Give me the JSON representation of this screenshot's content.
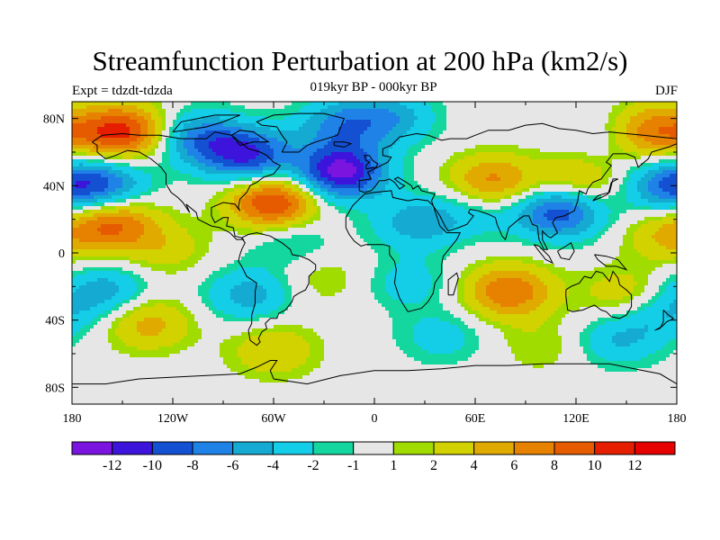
{
  "header": {
    "title": "Streamfunction Perturbation at 200 hPa (km2/s)",
    "left_label": "Expt = tdzdt-tdzda",
    "center_label": "019kyr BP - 000kyr BP",
    "right_label": "DJF"
  },
  "map": {
    "projection": "cylindrical-equidistant",
    "lon_range": [
      -180,
      180
    ],
    "lat_range": [
      -90,
      90
    ],
    "lon_ticks": [
      "180",
      "120W",
      "60W",
      "0",
      "60E",
      "120E",
      "180"
    ],
    "lat_ticks": [
      "80N",
      "40N",
      "0",
      "40S",
      "80S"
    ],
    "land_outline_color": "#000000",
    "neutral_color": "#e6e6e6"
  },
  "colorbar": {
    "colors": [
      "#7b14df",
      "#3c14dc",
      "#1450d2",
      "#1e82e6",
      "#14aad2",
      "#14cde6",
      "#14d7a0",
      "#e6e6e6",
      "#a0dc00",
      "#d2d200",
      "#e1aa00",
      "#e68200",
      "#e65a00",
      "#e61e00",
      "#e60000"
    ],
    "labels": [
      "-12",
      "-10",
      "-8",
      "-6",
      "-4",
      "-2",
      "-1",
      "1",
      "2",
      "4",
      "6",
      "8",
      "10",
      "12"
    ]
  },
  "anomalies": [
    {
      "lon": -150,
      "lat": 72,
      "value": 11
    },
    {
      "lon": -60,
      "lat": 30,
      "value": 11
    },
    {
      "lon": -20,
      "lat": 48,
      "value": -13
    },
    {
      "lon": -75,
      "lat": 58,
      "value": -10
    },
    {
      "lon": -105,
      "lat": 68,
      "value": -7
    },
    {
      "lon": -20,
      "lat": 76,
      "value": -6
    },
    {
      "lon": 10,
      "lat": 80,
      "value": -5
    },
    {
      "lon": 70,
      "lat": 42,
      "value": 7
    },
    {
      "lon": 120,
      "lat": 42,
      "value": 5
    },
    {
      "lon": 165,
      "lat": 72,
      "value": 8
    },
    {
      "lon": -160,
      "lat": 40,
      "value": -7
    },
    {
      "lon": 175,
      "lat": 40,
      "value": -7
    },
    {
      "lon": -155,
      "lat": 18,
      "value": 8
    },
    {
      "lon": 110,
      "lat": 25,
      "value": -10
    },
    {
      "lon": 25,
      "lat": 18,
      "value": -5
    },
    {
      "lon": 175,
      "lat": 10,
      "value": 4
    },
    {
      "lon": -125,
      "lat": 2,
      "value": 3
    },
    {
      "lon": -50,
      "lat": 8,
      "value": -3
    },
    {
      "lon": -30,
      "lat": -15,
      "value": 2
    },
    {
      "lon": -160,
      "lat": -22,
      "value": -5
    },
    {
      "lon": -75,
      "lat": -25,
      "value": -5
    },
    {
      "lon": -135,
      "lat": -42,
      "value": 5
    },
    {
      "lon": -60,
      "lat": -58,
      "value": 4
    },
    {
      "lon": 80,
      "lat": -23,
      "value": 8
    },
    {
      "lon": 20,
      "lat": -18,
      "value": -3
    },
    {
      "lon": 150,
      "lat": -25,
      "value": 4
    },
    {
      "lon": 40,
      "lat": -50,
      "value": -3
    },
    {
      "lon": 145,
      "lat": -52,
      "value": -4
    },
    {
      "lon": 170,
      "lat": -35,
      "value": -4
    },
    {
      "lon": 100,
      "lat": -55,
      "value": 2
    },
    {
      "lon": 60,
      "lat": 25,
      "value": -3
    },
    {
      "lon": 140,
      "lat": 70,
      "value": -2
    }
  ]
}
